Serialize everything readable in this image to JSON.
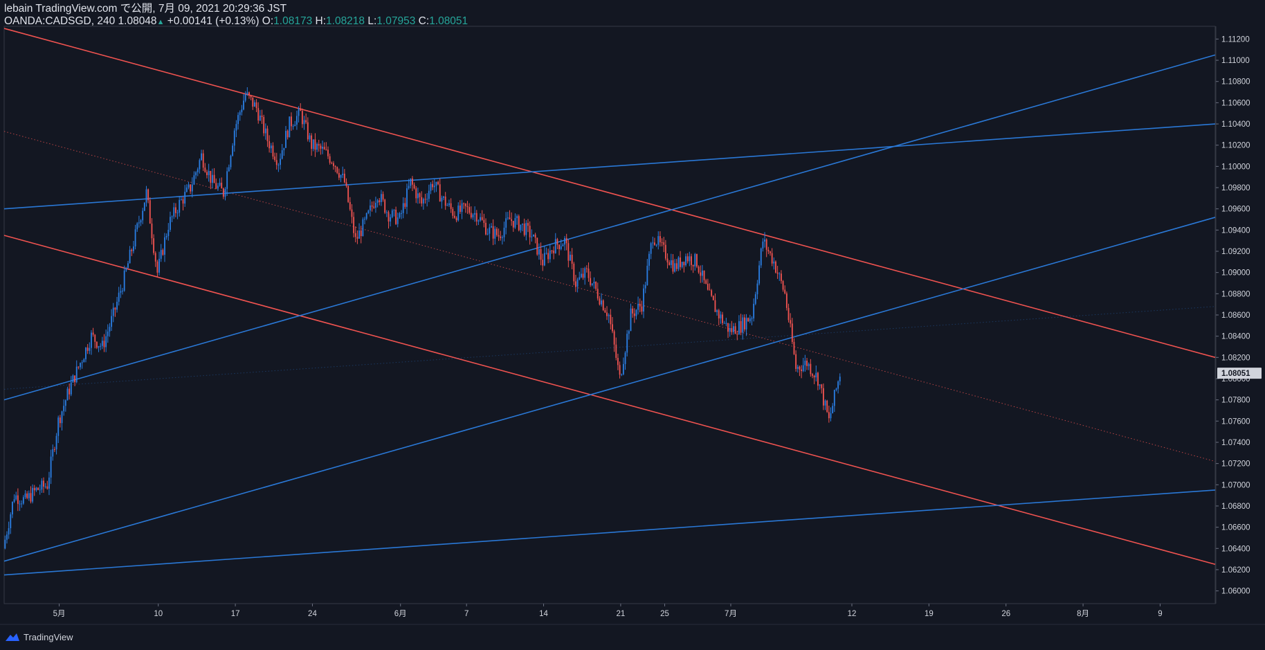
{
  "header": {
    "line1": "lebain TradingView.com で公開, 7月 09, 2021 20:29:36 JST",
    "symbol_line": "OANDA:CADSGD, 240 1.08048",
    "change": "+0.00141 (+0.13%)",
    "o_label": "O:",
    "o_val": "1.08173",
    "h_label": "H:",
    "h_val": "1.08218",
    "l_label": "L:",
    "l_val": "1.07953",
    "c_label": "C:",
    "c_val": "1.08051"
  },
  "footer": {
    "brand": "TradingView"
  },
  "colors": {
    "background": "#131722",
    "up": "#2a7de1",
    "down": "#ef5350",
    "red_line": "#f05350",
    "blue_line": "#2a78d6",
    "grid": "#2a2e39",
    "last_price_bg": "#d1d4dc",
    "last_price_text": "#131722"
  },
  "chart_data": {
    "type": "candlestick",
    "symbol": "OANDA:CADSGD",
    "interval": "240",
    "ylim": [
      1.0588,
      1.1132
    ],
    "y_ticks": [
      1.112,
      1.11,
      1.108,
      1.106,
      1.104,
      1.102,
      1.1,
      1.098,
      1.096,
      1.094,
      1.092,
      1.09,
      1.088,
      1.086,
      1.084,
      1.082,
      1.08,
      1.078,
      1.076,
      1.074,
      1.072,
      1.07,
      1.068,
      1.066,
      1.064,
      1.062,
      1.06
    ],
    "y_tick_labels": [
      "1.11200",
      "1.11000",
      "1.10800",
      "1.10600",
      "1.10400",
      "1.10200",
      "1.10000",
      "1.09800",
      "1.09600",
      "1.09400",
      "1.09200",
      "1.09000",
      "1.08800",
      "1.08600",
      "1.08400",
      "1.08200",
      "1.08000",
      "1.07800",
      "1.07600",
      "1.07400",
      "1.07200",
      "1.07000",
      "1.06800",
      "1.06600",
      "1.06400",
      "1.06200",
      "1.06000"
    ],
    "last_price": "1.08051",
    "x_ticks": [
      {
        "label": "5月",
        "date": "2021-05-01"
      },
      {
        "label": "10",
        "date": "2021-05-10"
      },
      {
        "label": "17",
        "date": "2021-05-17"
      },
      {
        "label": "24",
        "date": "2021-05-24"
      },
      {
        "label": "6月",
        "date": "2021-06-01"
      },
      {
        "label": "7",
        "date": "2021-06-07"
      },
      {
        "label": "14",
        "date": "2021-06-14"
      },
      {
        "label": "21",
        "date": "2021-06-21"
      },
      {
        "label": "25",
        "date": "2021-06-25"
      },
      {
        "label": "7月",
        "date": "2021-07-01"
      },
      {
        "label": "12",
        "date": "2021-07-12"
      },
      {
        "label": "19",
        "date": "2021-07-19"
      },
      {
        "label": "26",
        "date": "2021-07-26"
      },
      {
        "label": "8月",
        "date": "2021-08-02"
      },
      {
        "label": "9",
        "date": "2021-08-09"
      }
    ],
    "trendlines": [
      {
        "name": "upper-red-channel",
        "color": "red",
        "p1": [
          "2021-04-26",
          1.113
        ],
        "p2": [
          "2021-08-14",
          1.082
        ],
        "style": "solid"
      },
      {
        "name": "lower-red-channel",
        "color": "red",
        "p1": [
          "2021-04-26",
          1.0935
        ],
        "p2": [
          "2021-08-14",
          1.0625
        ],
        "style": "solid"
      },
      {
        "name": "mid-red-dotted",
        "color": "red",
        "p1": [
          "2021-04-26",
          1.1033
        ],
        "p2": [
          "2021-08-14",
          1.0722
        ],
        "style": "dotted"
      },
      {
        "name": "blue-upper-slow",
        "color": "blue",
        "p1": [
          "2021-04-26",
          1.096
        ],
        "p2": [
          "2021-08-14",
          1.104
        ],
        "style": "solid"
      },
      {
        "name": "blue-upper-steep",
        "color": "blue",
        "p1": [
          "2021-04-26",
          1.078
        ],
        "p2": [
          "2021-08-14",
          1.1105
        ],
        "style": "solid"
      },
      {
        "name": "blue-lower-steep",
        "color": "blue",
        "p1": [
          "2021-04-26",
          1.0628
        ],
        "p2": [
          "2021-08-14",
          1.0952
        ],
        "style": "solid"
      },
      {
        "name": "blue-lower-slow",
        "color": "blue",
        "p1": [
          "2021-04-26",
          1.0615
        ],
        "p2": [
          "2021-08-14",
          1.0695
        ],
        "style": "solid"
      },
      {
        "name": "blue-faint-dotted",
        "color": "blue",
        "p1": [
          "2021-04-26",
          1.079
        ],
        "p2": [
          "2021-08-14",
          1.0868
        ],
        "style": "dotted"
      }
    ],
    "close_path": [
      [
        "2021-04-26",
        1.064
      ],
      [
        "2021-04-27",
        1.069
      ],
      [
        "2021-04-28",
        1.0685
      ],
      [
        "2021-04-29",
        1.0695
      ],
      [
        "2021-04-30",
        1.07
      ],
      [
        "2021-05-01",
        1.076
      ],
      [
        "2021-05-02",
        1.079
      ],
      [
        "2021-05-03",
        1.0815
      ],
      [
        "2021-05-04",
        1.084
      ],
      [
        "2021-05-05",
        1.083
      ],
      [
        "2021-05-06",
        1.086
      ],
      [
        "2021-05-07",
        1.0895
      ],
      [
        "2021-05-08",
        1.0935
      ],
      [
        "2021-05-09",
        1.0975
      ],
      [
        "2021-05-10",
        1.09
      ],
      [
        "2021-05-11",
        1.0945
      ],
      [
        "2021-05-12",
        1.0965
      ],
      [
        "2021-05-13",
        1.098
      ],
      [
        "2021-05-14",
        1.101
      ],
      [
        "2021-05-15",
        1.0985
      ],
      [
        "2021-05-16",
        1.0975
      ],
      [
        "2021-05-17",
        1.1035
      ],
      [
        "2021-05-18",
        1.1068
      ],
      [
        "2021-05-19",
        1.1055
      ],
      [
        "2021-05-20",
        1.1025
      ],
      [
        "2021-05-21",
        1.1005
      ],
      [
        "2021-05-22",
        1.104
      ],
      [
        "2021-05-23",
        1.105
      ],
      [
        "2021-05-24",
        1.102
      ],
      [
        "2021-05-25",
        1.1015
      ],
      [
        "2021-05-26",
        1.1005
      ],
      [
        "2021-05-27",
        1.0985
      ],
      [
        "2021-05-28",
        1.093
      ],
      [
        "2021-05-29",
        1.095
      ],
      [
        "2021-05-30",
        1.0975
      ],
      [
        "2021-05-31",
        1.0955
      ],
      [
        "2021-06-01",
        1.095
      ],
      [
        "2021-06-02",
        1.0985
      ],
      [
        "2021-06-03",
        1.0965
      ],
      [
        "2021-06-04",
        1.0985
      ],
      [
        "2021-06-05",
        1.0968
      ],
      [
        "2021-06-06",
        1.0955
      ],
      [
        "2021-06-07",
        1.096
      ],
      [
        "2021-06-08",
        1.0955
      ],
      [
        "2021-06-09",
        1.094
      ],
      [
        "2021-06-10",
        1.0935
      ],
      [
        "2021-06-11",
        1.095
      ],
      [
        "2021-06-12",
        1.0945
      ],
      [
        "2021-06-13",
        1.0935
      ],
      [
        "2021-06-14",
        1.091
      ],
      [
        "2021-06-15",
        1.0925
      ],
      [
        "2021-06-16",
        1.093
      ],
      [
        "2021-06-17",
        1.089
      ],
      [
        "2021-06-18",
        1.09
      ],
      [
        "2021-06-19",
        1.088
      ],
      [
        "2021-06-20",
        1.086
      ],
      [
        "2021-06-21",
        1.08
      ],
      [
        "2021-06-22",
        1.086
      ],
      [
        "2021-06-23",
        1.087
      ],
      [
        "2021-06-24",
        1.0935
      ],
      [
        "2021-06-25",
        1.092
      ],
      [
        "2021-06-26",
        1.0905
      ],
      [
        "2021-06-27",
        1.0915
      ],
      [
        "2021-06-28",
        1.091
      ],
      [
        "2021-06-29",
        1.088
      ],
      [
        "2021-06-30",
        1.086
      ],
      [
        "2021-07-01",
        1.0845
      ],
      [
        "2021-07-02",
        1.085
      ],
      [
        "2021-07-03",
        1.086
      ],
      [
        "2021-07-04",
        1.093
      ],
      [
        "2021-07-05",
        1.091
      ],
      [
        "2021-07-06",
        1.088
      ],
      [
        "2021-07-07",
        1.081
      ],
      [
        "2021-07-08",
        1.0815
      ],
      [
        "2021-07-09",
        1.08
      ],
      [
        "2021-07-10",
        1.076
      ],
      [
        "2021-07-11",
        1.0805
      ]
    ]
  }
}
